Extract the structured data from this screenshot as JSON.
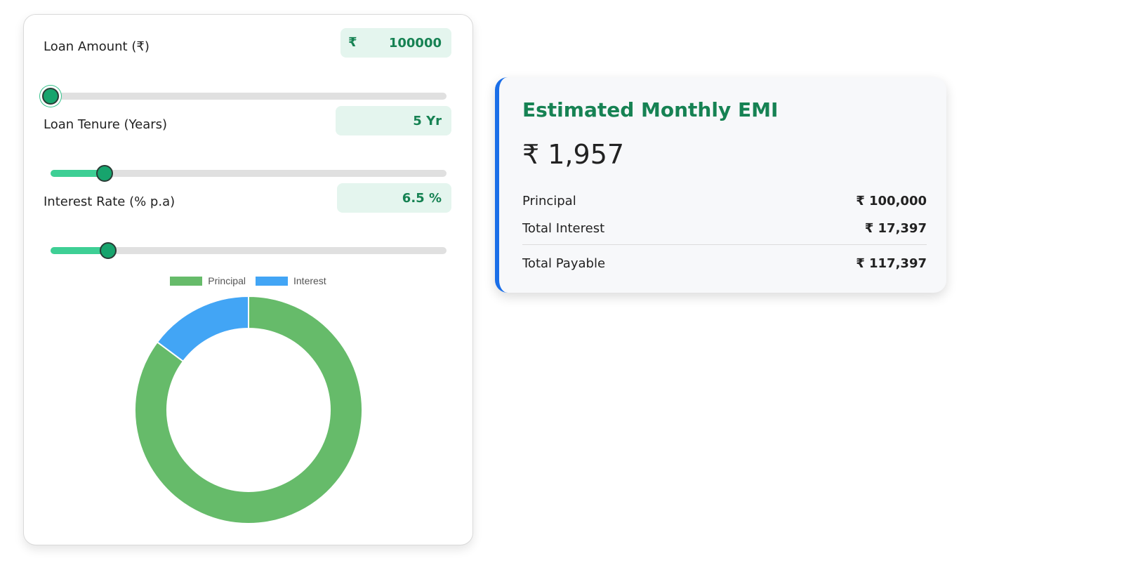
{
  "inputs": {
    "loan_amount": {
      "label": "Loan Amount (₹)",
      "currency_symbol": "₹",
      "value": "100000",
      "slider_fraction": 0
    },
    "tenure": {
      "label": "Loan Tenure (Years)",
      "value": "5 Yr",
      "slider_fraction": 0.137
    },
    "interest": {
      "label": "Interest Rate (% p.a)",
      "value": "6.5 %",
      "slider_fraction": 0.146
    }
  },
  "chart_data": {
    "type": "pie",
    "donut": true,
    "categories": [
      "Principal",
      "Interest"
    ],
    "values": [
      100000,
      17397
    ],
    "colors": [
      "#66bb6a",
      "#42a5f5"
    ],
    "legend": "top",
    "title": ""
  },
  "summary": {
    "title": "Estimated Monthly EMI",
    "emi": "₹ 1,957",
    "rows": [
      {
        "label": "Principal",
        "value": "₹ 100,000"
      },
      {
        "label": "Total Interest",
        "value": "₹ 17,397"
      },
      {
        "label": "Total Payable",
        "value": "₹ 117,397"
      }
    ]
  },
  "colors": {
    "accent_green": "#168253",
    "slider_fill": "#3ecf95",
    "emi_border": "#1a6ee8"
  }
}
